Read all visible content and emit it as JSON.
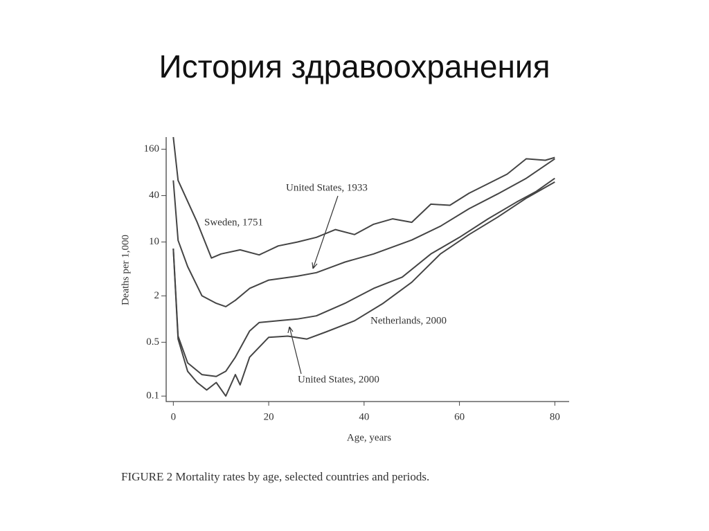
{
  "slide_title": "История здравоохранения",
  "caption": "FIGURE 2 Mortality rates by age, selected countries and periods.",
  "chart_data": {
    "type": "line",
    "x_label": "Age, years",
    "y_label": "Deaths per 1,000",
    "log_y": true,
    "xlim": [
      -1.5,
      83
    ],
    "ylim": [
      0.085,
      230
    ],
    "xticks": [
      0,
      20,
      40,
      60,
      80
    ],
    "yticks": [
      0.1,
      0.5,
      2,
      10,
      40,
      160
    ],
    "series": [
      {
        "name": "Sweden, 1751",
        "color": "#444444",
        "x": [
          0,
          1,
          5,
          8,
          10,
          14,
          18,
          22,
          26,
          30,
          34,
          38,
          42,
          46,
          50,
          54,
          58,
          62,
          66,
          70,
          74,
          78,
          80
        ],
        "values": [
          230,
          63,
          18,
          6.2,
          7.0,
          7.9,
          6.8,
          8.9,
          10,
          11.5,
          14.5,
          12.5,
          17,
          20,
          18,
          31,
          30,
          43,
          57,
          76,
          120,
          115,
          125
        ]
      },
      {
        "name": "United States, 1933",
        "color": "#444444",
        "x": [
          0,
          1,
          3,
          6,
          9,
          11,
          13,
          16,
          20,
          26,
          30,
          36,
          42,
          50,
          56,
          62,
          68,
          74,
          80
        ],
        "values": [
          63,
          10.5,
          4.8,
          2.0,
          1.6,
          1.45,
          1.75,
          2.5,
          3.2,
          3.6,
          4.0,
          5.5,
          7,
          10.6,
          16,
          27,
          42,
          67,
          120
        ]
      },
      {
        "name": "Netherlands, 2000",
        "color": "#444444",
        "x": [
          0,
          1,
          3,
          6,
          9,
          11,
          13,
          16,
          18,
          22,
          26,
          30,
          36,
          42,
          48,
          54,
          60,
          66,
          72,
          76,
          80
        ],
        "values": [
          8.2,
          0.6,
          0.27,
          0.19,
          0.18,
          0.21,
          0.32,
          0.7,
          0.9,
          0.95,
          1.0,
          1.1,
          1.6,
          2.5,
          3.5,
          7,
          11.5,
          20,
          33,
          45,
          67
        ]
      },
      {
        "name": "United States, 2000",
        "color": "#444444",
        "x": [
          0,
          1,
          3,
          5,
          7,
          9,
          11,
          13,
          14,
          16,
          20,
          24,
          28,
          32,
          38,
          44,
          50,
          56,
          62,
          68,
          74,
          80
        ],
        "values": [
          8.2,
          0.55,
          0.21,
          0.15,
          0.12,
          0.15,
          0.1,
          0.19,
          0.14,
          0.32,
          0.58,
          0.6,
          0.55,
          0.68,
          0.95,
          1.6,
          3.0,
          7,
          12.5,
          21,
          37,
          60
        ]
      }
    ]
  }
}
